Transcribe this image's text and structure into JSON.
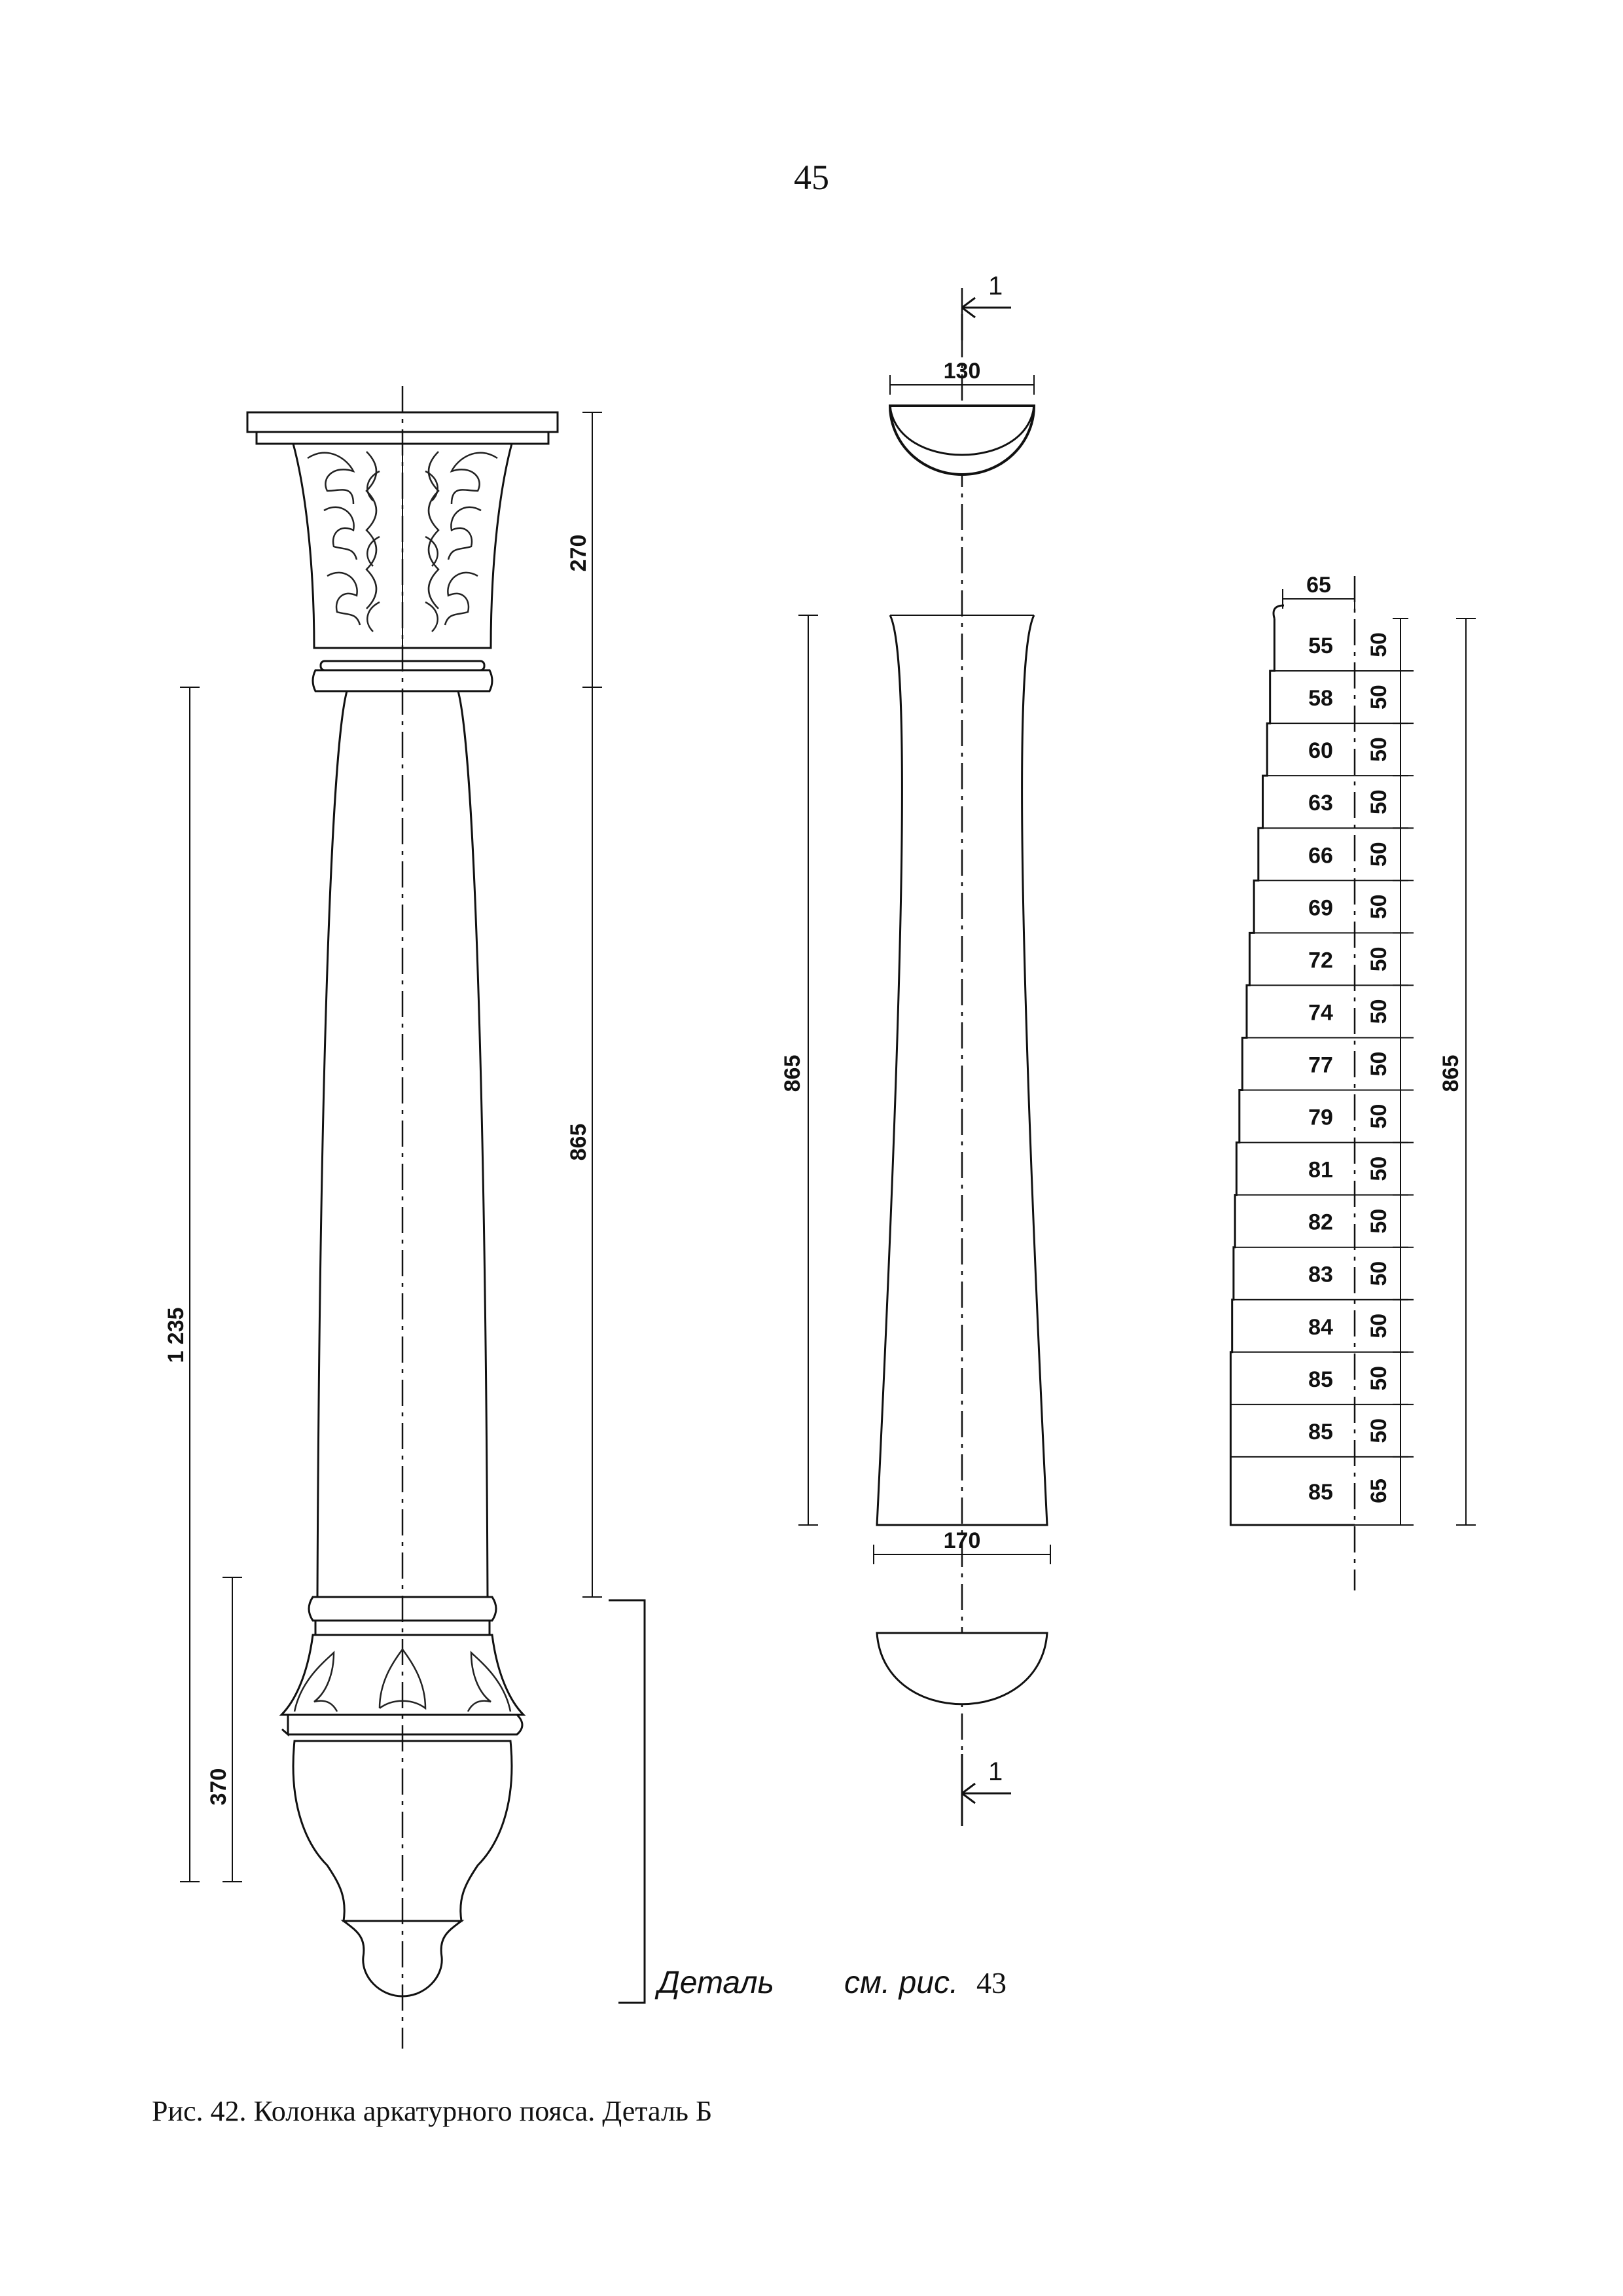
{
  "page": {
    "number": "45"
  },
  "caption": "Рис. 42. Колонка аркатурного пояса. Деталь Б",
  "elevation": {
    "dim_capital": "270",
    "dim_shaft": "865",
    "dim_total": "1 235",
    "dim_base": "370",
    "detail_label": "Деталь",
    "detail_ref_italic": "см. рис.",
    "detail_ref_number": "43"
  },
  "section": {
    "section_mark": "1",
    "top_width": "130",
    "height": "865",
    "bottom_width": "170"
  },
  "profile": {
    "top_width": "65",
    "total_height": "865",
    "widths": [
      "55",
      "58",
      "60",
      "63",
      "66",
      "69",
      "72",
      "74",
      "77",
      "79",
      "81",
      "82",
      "83",
      "84",
      "85",
      "85",
      "85"
    ],
    "steps": [
      "50",
      "50",
      "50",
      "50",
      "50",
      "50",
      "50",
      "50",
      "50",
      "50",
      "50",
      "50",
      "50",
      "50",
      "50",
      "50",
      "65"
    ]
  }
}
